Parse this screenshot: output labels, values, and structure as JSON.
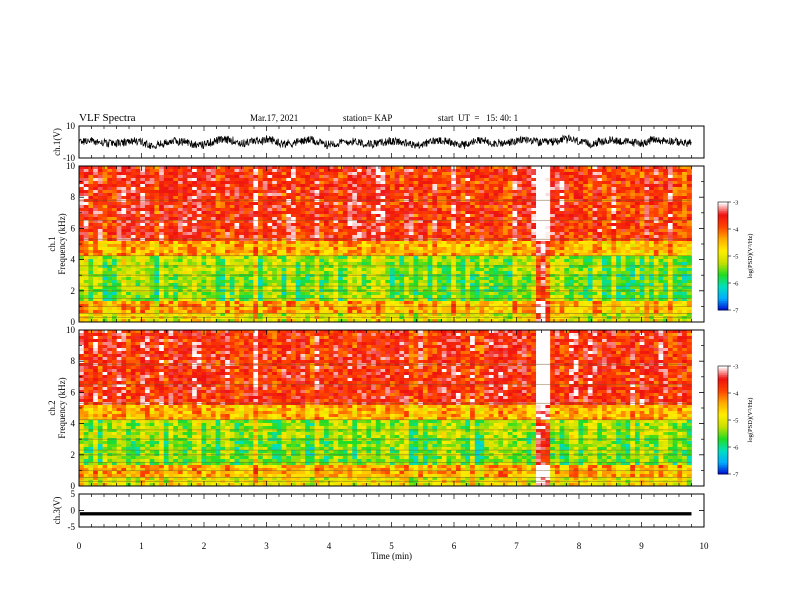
{
  "header": {
    "title": "VLF Spectra",
    "date": "Mar.17, 2021",
    "station": "station= KAP",
    "start": "start  UT  =   15: 40: 1"
  },
  "colors": {
    "colormap": [
      "#000000",
      "#0000cc",
      "#00aaff",
      "#00e0c0",
      "#22dd22",
      "#c8e000",
      "#ffee00",
      "#ffaa00",
      "#ff4400",
      "#ee1111",
      "#ffffff"
    ],
    "trace": "#000000"
  },
  "chart_data": [
    {
      "type": "line",
      "ylabel": "ch.1(V)",
      "ylim": [
        -10,
        10
      ],
      "yticks": [
        "10",
        "-10"
      ],
      "xlim": [
        0,
        10
      ],
      "series": [
        {
          "mean": 0.0,
          "amplitude_range": [
            -6,
            6
          ]
        }
      ]
    },
    {
      "type": "heatmap",
      "ylabel": "ch.1\nFrequency (kHz)",
      "ylim": [
        0,
        10
      ],
      "yticks": [
        "0",
        "2",
        "4",
        "6",
        "8",
        "10"
      ],
      "xlim": [
        0,
        10
      ],
      "colorbar": {
        "label": "log(PSD)(V²/Hz)",
        "range": [
          -7,
          -3
        ],
        "ticks": [
          "-3",
          "-4",
          "-5",
          "-6",
          "-7"
        ]
      }
    },
    {
      "type": "heatmap",
      "ylabel": "ch.2\nFrequency (kHz)",
      "ylim": [
        0,
        10
      ],
      "yticks": [
        "0",
        "2",
        "4",
        "6",
        "8",
        "10"
      ],
      "xlim": [
        0,
        10
      ],
      "colorbar": {
        "label": "log(PSD)(V²/Hz)",
        "range": [
          -7,
          -3
        ],
        "ticks": [
          "-3",
          "-4",
          "-5",
          "-6",
          "-7"
        ]
      }
    },
    {
      "type": "line",
      "ylabel": "ch.3(V)",
      "ylim": [
        -5,
        5
      ],
      "yticks": [
        "5",
        "0",
        "-5"
      ],
      "xlim": [
        0,
        10
      ],
      "series": [
        {
          "mean": -1.0,
          "amplitude_range": [
            -1.5,
            -0.5
          ]
        }
      ]
    }
  ],
  "xaxis": {
    "label": "Time (min)",
    "ticks": [
      "0",
      "1",
      "2",
      "3",
      "4",
      "5",
      "6",
      "7",
      "8",
      "9",
      "10"
    ],
    "data_end": 9.8
  }
}
